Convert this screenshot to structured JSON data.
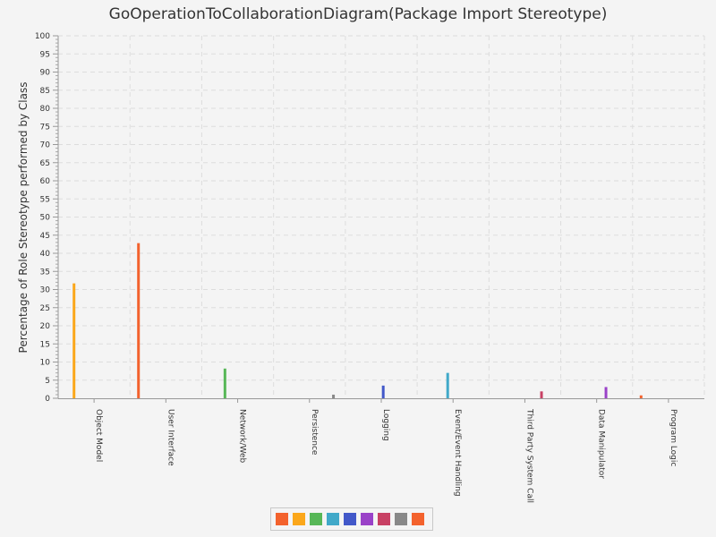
{
  "chart_data": {
    "type": "bar",
    "title": "GoOperationToCollaborationDiagram(Package Import Stereotype)",
    "xlabel": "",
    "ylabel": "Percentage of Role Stereotype performed by Class",
    "ylim": [
      0,
      100
    ],
    "ytick_step": 5,
    "grid": true,
    "legend": "bottom-center",
    "categories": [
      "Object Model",
      "User Interface",
      "Network/Web",
      "Persistence",
      "Logging",
      "Event/Event Handling",
      "Third Party System Call",
      "Data Manipulator",
      "Program Logic"
    ],
    "series": [
      {
        "name": "",
        "color": "#f3622d",
        "values": [
          0,
          42.8,
          0,
          0,
          0,
          0,
          0,
          0,
          0.8
        ]
      },
      {
        "name": "",
        "color": "#fba71b",
        "values": [
          31.7,
          0,
          0,
          0,
          0,
          0,
          0,
          0,
          0
        ]
      },
      {
        "name": "",
        "color": "#57b757",
        "values": [
          0,
          0,
          8.2,
          0,
          0,
          0,
          0,
          0,
          0
        ]
      },
      {
        "name": "",
        "color": "#41a9c9",
        "values": [
          0,
          0,
          0,
          0,
          0,
          7.0,
          0,
          0,
          0
        ]
      },
      {
        "name": "",
        "color": "#4258c9",
        "values": [
          0,
          0,
          0,
          0,
          3.5,
          0,
          0,
          0,
          0
        ]
      },
      {
        "name": "",
        "color": "#9a42c8",
        "values": [
          0,
          0,
          0,
          0,
          0,
          0,
          0,
          3.1,
          0
        ]
      },
      {
        "name": "",
        "color": "#c84164",
        "values": [
          0,
          0,
          0,
          0,
          0,
          0,
          1.9,
          0,
          0
        ]
      },
      {
        "name": "",
        "color": "#888888",
        "values": [
          0,
          0,
          0,
          1.0,
          0,
          0,
          0,
          0,
          0
        ]
      },
      {
        "name": "",
        "color": "#f3622d",
        "values": [
          0,
          0,
          0,
          0,
          0,
          0,
          0,
          0,
          0
        ]
      }
    ]
  }
}
